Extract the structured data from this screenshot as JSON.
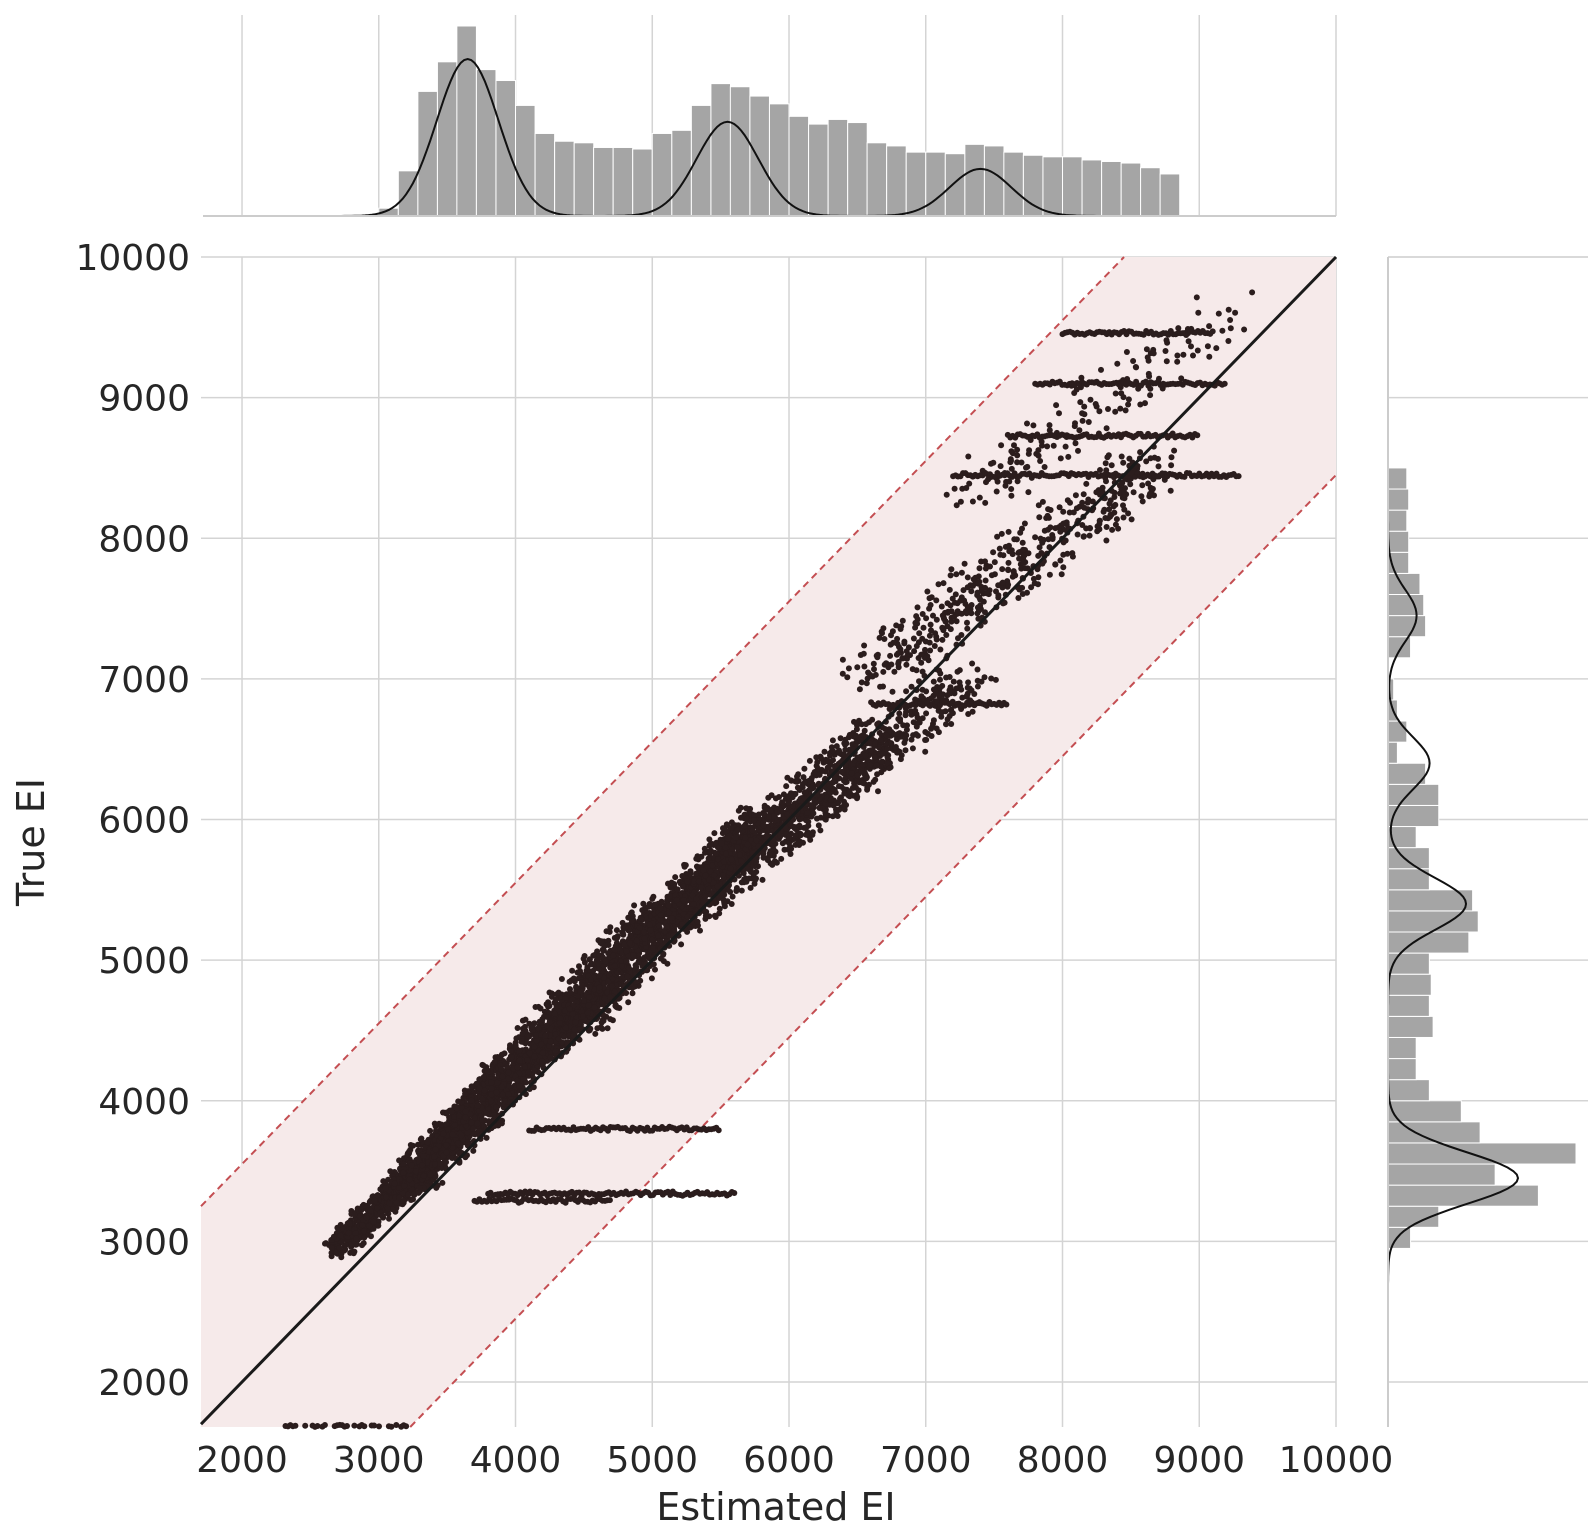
{
  "chart_data": {
    "type": "scatter",
    "title": "",
    "xlabel": "Estimated EI",
    "ylabel": "True EI",
    "xlim": [
      1700,
      10000
    ],
    "ylim": [
      1680,
      10000
    ],
    "xticks": [
      "2000",
      "3000",
      "4000",
      "5000",
      "6000",
      "7000",
      "8000",
      "9000",
      "10000"
    ],
    "yticks": [
      "2000",
      "3000",
      "4000",
      "5000",
      "6000",
      "7000",
      "8000",
      "9000",
      "10000"
    ],
    "grid": true,
    "identity_line": {
      "from": [
        1700,
        1700
      ],
      "to": [
        10000,
        10000
      ],
      "color": "#1a1a1a"
    },
    "tolerance_band": {
      "offset": 1550,
      "fill": "#f6eaea",
      "line_color": "#c44e52",
      "line_style": "dashed"
    },
    "scatter_color": "#2b1d1d",
    "scatter_clusters": [
      {
        "x": [
          2700,
          3600
        ],
        "y": [
          2950,
          3800
        ],
        "note": "dense"
      },
      {
        "x": [
          3200,
          4500
        ],
        "y": [
          3400,
          4700
        ],
        "note": "dense"
      },
      {
        "x": [
          3600,
          5000
        ],
        "y": [
          3800,
          5300
        ],
        "note": "dense"
      },
      {
        "x": [
          4400,
          5800
        ],
        "y": [
          4500,
          6000
        ],
        "note": "dense"
      },
      {
        "x": [
          5000,
          6700
        ],
        "y": [
          5200,
          6600
        ],
        "note": "dense"
      },
      {
        "x": [
          5500,
          7300
        ],
        "y": [
          5600,
          7000
        ],
        "note": "medium"
      },
      {
        "x": [
          6600,
          8600
        ],
        "y": [
          7000,
          8500
        ],
        "note": "medium"
      },
      {
        "x": [
          7300,
          9200
        ],
        "y": [
          8300,
          9600
        ],
        "note": "sparse"
      }
    ],
    "scatter_streaks": [
      {
        "y": 3340,
        "x": [
          3800,
          5600
        ]
      },
      {
        "y": 3290,
        "x": [
          3700,
          4700
        ]
      },
      {
        "y": 3800,
        "x": [
          4100,
          5500
        ]
      },
      {
        "y": 1680,
        "x": [
          2300,
          3200
        ]
      },
      {
        "y": 9460,
        "x": [
          8000,
          9100
        ]
      },
      {
        "y": 9100,
        "x": [
          7800,
          9200
        ]
      },
      {
        "y": 8730,
        "x": [
          7600,
          9000
        ]
      },
      {
        "y": 8450,
        "x": [
          7200,
          9300
        ]
      },
      {
        "y": 6820,
        "x": [
          6600,
          7600
        ]
      }
    ],
    "marginal_x_hist": {
      "bins": [
        3000,
        3143,
        3286,
        3429,
        3571,
        3714,
        3857,
        4000,
        4143,
        4286,
        4429,
        4571,
        4714,
        4857,
        5000,
        5143,
        5286,
        5429,
        5571,
        5714,
        5857,
        6000,
        6143,
        6286,
        6429,
        6571,
        6714,
        6857,
        7000,
        7143,
        7286,
        7429,
        7571,
        7714,
        7857,
        8000,
        8143,
        8286,
        8429,
        8571,
        8714
      ],
      "counts": [
        0.05,
        0.29,
        0.8,
        0.99,
        1.22,
        0.94,
        0.87,
        0.71,
        0.53,
        0.48,
        0.47,
        0.44,
        0.44,
        0.43,
        0.53,
        0.55,
        0.71,
        0.85,
        0.83,
        0.77,
        0.72,
        0.64,
        0.59,
        0.62,
        0.6,
        0.47,
        0.45,
        0.41,
        0.41,
        0.4,
        0.46,
        0.45,
        0.41,
        0.39,
        0.38,
        0.38,
        0.36,
        0.35,
        0.34,
        0.31,
        0.27
      ],
      "kde_peaks": [
        {
          "x": 3650,
          "h": 1.0
        },
        {
          "x": 5550,
          "h": 0.6
        },
        {
          "x": 7400,
          "h": 0.3
        }
      ]
    },
    "marginal_y_hist": {
      "bins": [
        2950,
        3100,
        3250,
        3400,
        3550,
        3700,
        3850,
        4000,
        4150,
        4300,
        4450,
        4600,
        4750,
        4900,
        5050,
        5200,
        5350,
        5500,
        5650,
        5800,
        5950,
        6100,
        6250,
        6400,
        6550,
        6700,
        6850,
        7000,
        7150,
        7300,
        7450,
        7600,
        7750,
        7900,
        8050,
        8200,
        8350
      ],
      "counts": [
        0.12,
        0.27,
        0.8,
        0.57,
        1.0,
        0.49,
        0.39,
        0.22,
        0.15,
        0.15,
        0.24,
        0.22,
        0.23,
        0.22,
        0.43,
        0.48,
        0.45,
        0.22,
        0.22,
        0.15,
        0.27,
        0.27,
        0.2,
        0.05,
        0.1,
        0.05,
        0.03,
        0.0,
        0.12,
        0.2,
        0.19,
        0.17,
        0.11,
        0.11,
        0.1,
        0.11,
        0.1
      ],
      "kde_peaks": [
        {
          "y": 3450,
          "h": 1.0
        },
        {
          "y": 5400,
          "h": 0.6
        },
        {
          "y": 6400,
          "h": 0.32
        },
        {
          "y": 7450,
          "h": 0.22
        }
      ]
    }
  }
}
